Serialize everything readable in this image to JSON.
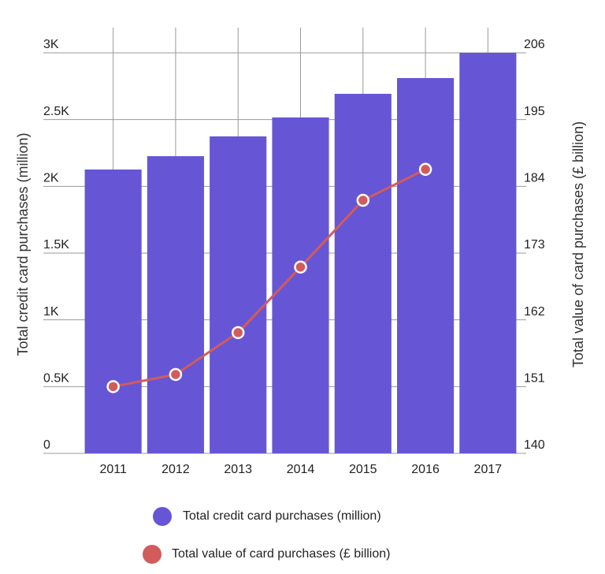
{
  "chart_data": {
    "type": "bar-line",
    "categories": [
      "2011",
      "2012",
      "2013",
      "2014",
      "2015",
      "2016",
      "2017"
    ],
    "y_label": "Total credit card purchases (million)",
    "y2_label": "Total value of card purchases (£ billion)",
    "ylim": [
      0,
      3000
    ],
    "yticks": [
      0,
      {
        "value": 500,
        "label": "0.5K"
      },
      {
        "value": 1000,
        "label": "1K"
      },
      {
        "value": 1500,
        "label": "1.5K"
      },
      {
        "value": 2000,
        "label": "2K"
      },
      {
        "value": 2500,
        "label": "2.5K"
      },
      {
        "value": 3000,
        "label": "3K"
      }
    ],
    "y2lim": [
      140,
      206
    ],
    "y2ticks": [
      140,
      151,
      162,
      173,
      184,
      195,
      206
    ],
    "grid": true,
    "series": [
      {
        "name": "Total credit card purchases (million)",
        "type": "bar",
        "color": "#6656d6",
        "values": [
          2126,
          2226,
          2374,
          2516,
          2693,
          2811,
          3000
        ]
      },
      {
        "name": "Total value of card purchases (£ billion)",
        "type": "line",
        "axis": "y2",
        "color": "#d25b5b",
        "values": [
          151.0,
          153.0,
          159.9,
          170.7,
          181.7,
          186.8,
          null
        ]
      }
    ]
  }
}
